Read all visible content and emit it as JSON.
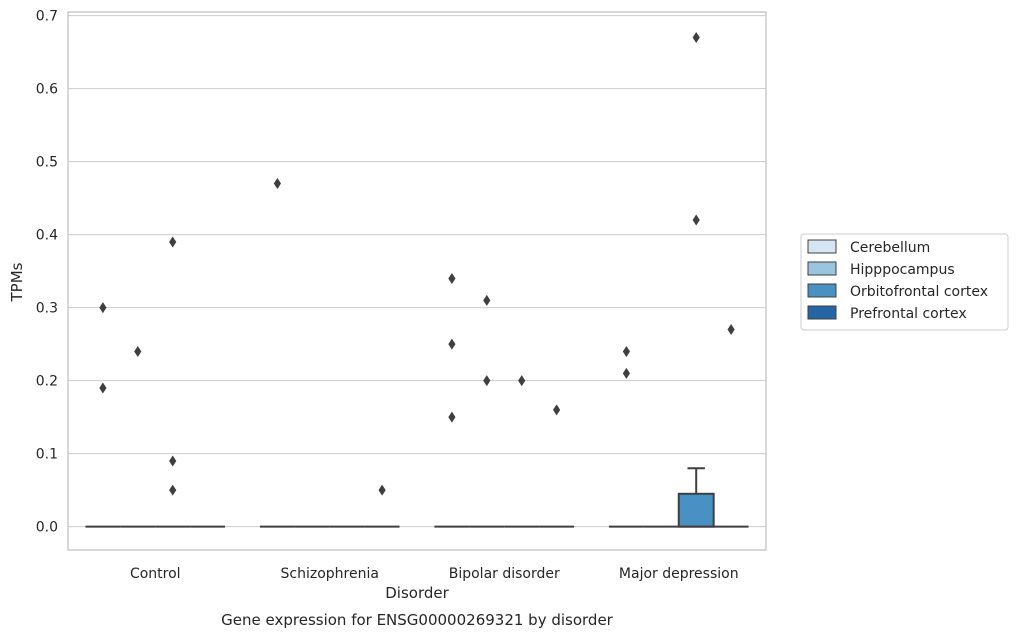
{
  "caption": "Gene expression for ENSG00000269321 by disorder",
  "chart_data": {
    "type": "box",
    "xlabel": "Disorder",
    "ylabel": "TPMs",
    "ylim": [
      -0.032,
      0.705
    ],
    "yticks": [
      "0.0",
      "0.1",
      "0.2",
      "0.3",
      "0.4",
      "0.5",
      "0.6",
      "0.7"
    ],
    "grid": "horizontal",
    "legend_position": "right",
    "categories": [
      "Control",
      "Schizophrenia",
      "Bipolar disorder",
      "Major depression"
    ],
    "series": [
      {
        "name": "Cerebellum",
        "color": "#d5e5f3"
      },
      {
        "name": "Hipppocampus",
        "color": "#9bc5de"
      },
      {
        "name": "Orbitofrontal cortex",
        "color": "#4a91c3"
      },
      {
        "name": "Prefrontal cortex",
        "color": "#2465a4"
      }
    ],
    "boxes": [
      {
        "category": "Control",
        "series": "Cerebellum",
        "q1": 0,
        "median": 0,
        "q3": 0,
        "whisker_low": 0,
        "whisker_high": 0,
        "outliers": [
          0.3,
          0.19
        ]
      },
      {
        "category": "Control",
        "series": "Hipppocampus",
        "q1": 0,
        "median": 0,
        "q3": 0,
        "whisker_low": 0,
        "whisker_high": 0,
        "outliers": [
          0.24
        ]
      },
      {
        "category": "Control",
        "series": "Orbitofrontal cortex",
        "q1": 0,
        "median": 0,
        "q3": 0,
        "whisker_low": 0,
        "whisker_high": 0,
        "outliers": [
          0.39,
          0.09,
          0.05
        ]
      },
      {
        "category": "Control",
        "series": "Prefrontal cortex",
        "q1": 0,
        "median": 0,
        "q3": 0,
        "whisker_low": 0,
        "whisker_high": 0,
        "outliers": []
      },
      {
        "category": "Schizophrenia",
        "series": "Cerebellum",
        "q1": 0,
        "median": 0,
        "q3": 0,
        "whisker_low": 0,
        "whisker_high": 0,
        "outliers": [
          0.47
        ]
      },
      {
        "category": "Schizophrenia",
        "series": "Hipppocampus",
        "q1": 0,
        "median": 0,
        "q3": 0,
        "whisker_low": 0,
        "whisker_high": 0,
        "outliers": []
      },
      {
        "category": "Schizophrenia",
        "series": "Orbitofrontal cortex",
        "q1": 0,
        "median": 0,
        "q3": 0,
        "whisker_low": 0,
        "whisker_high": 0,
        "outliers": []
      },
      {
        "category": "Schizophrenia",
        "series": "Prefrontal cortex",
        "q1": 0,
        "median": 0,
        "q3": 0,
        "whisker_low": 0,
        "whisker_high": 0,
        "outliers": [
          0.05
        ]
      },
      {
        "category": "Bipolar disorder",
        "series": "Cerebellum",
        "q1": 0,
        "median": 0,
        "q3": 0,
        "whisker_low": 0,
        "whisker_high": 0,
        "outliers": [
          0.34,
          0.25,
          0.15
        ]
      },
      {
        "category": "Bipolar disorder",
        "series": "Hipppocampus",
        "q1": 0,
        "median": 0,
        "q3": 0,
        "whisker_low": 0,
        "whisker_high": 0,
        "outliers": [
          0.31,
          0.2
        ]
      },
      {
        "category": "Bipolar disorder",
        "series": "Orbitofrontal cortex",
        "q1": 0,
        "median": 0,
        "q3": 0,
        "whisker_low": 0,
        "whisker_high": 0,
        "outliers": [
          0.2
        ]
      },
      {
        "category": "Bipolar disorder",
        "series": "Prefrontal cortex",
        "q1": 0,
        "median": 0,
        "q3": 0,
        "whisker_low": 0,
        "whisker_high": 0,
        "outliers": [
          0.16
        ]
      },
      {
        "category": "Major depression",
        "series": "Cerebellum",
        "q1": 0,
        "median": 0,
        "q3": 0,
        "whisker_low": 0,
        "whisker_high": 0,
        "outliers": [
          0.24,
          0.21
        ]
      },
      {
        "category": "Major depression",
        "series": "Hipppocampus",
        "q1": 0,
        "median": 0,
        "q3": 0,
        "whisker_low": 0,
        "whisker_high": 0,
        "outliers": []
      },
      {
        "category": "Major depression",
        "series": "Orbitofrontal cortex",
        "q1": 0,
        "median": 0,
        "q3": 0.045,
        "whisker_low": 0,
        "whisker_high": 0.08,
        "outliers": [
          0.67,
          0.42
        ]
      },
      {
        "category": "Major depression",
        "series": "Prefrontal cortex",
        "q1": 0,
        "median": 0,
        "q3": 0,
        "whisker_low": 0,
        "whisker_high": 0,
        "outliers": [
          0.27
        ]
      }
    ]
  }
}
